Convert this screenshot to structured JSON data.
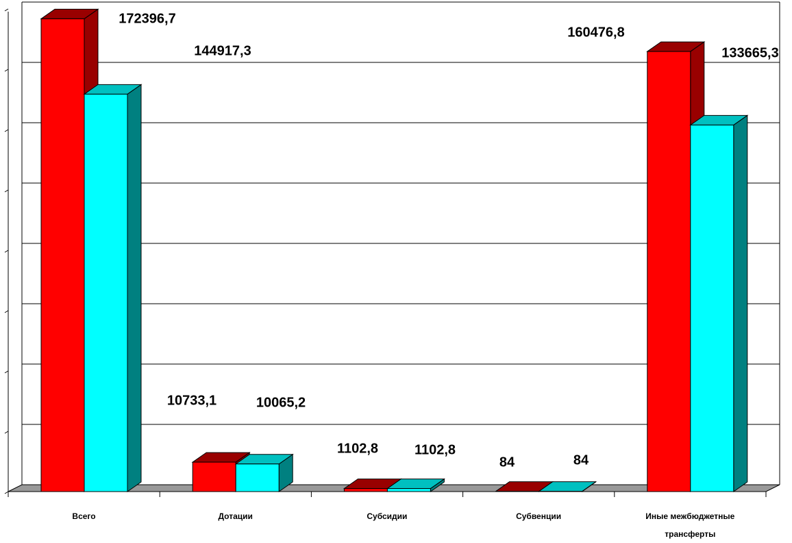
{
  "chart_data": {
    "type": "bar3d",
    "categories": [
      "Всего",
      "Дотации",
      "Субсидии",
      "Субвенции",
      "Иные межбюджетные трансферты"
    ],
    "series": [
      {
        "color": "#ff0000",
        "values": [
          172396.7,
          10733.1,
          1102.8,
          84,
          160476.8
        ],
        "value_labels": [
          "172396,7",
          "10733,1",
          "1102,8",
          "84",
          "160476,8"
        ]
      },
      {
        "color": "#00ffff",
        "values": [
          144917.3,
          10065.2,
          1102.8,
          84,
          133665.3
        ],
        "value_labels": [
          "144917,3",
          "10065,2",
          "1102,8",
          "84",
          "133665,3"
        ]
      }
    ],
    "ylim": [
      0,
      176000
    ],
    "yticks": [
      0,
      22000,
      44000,
      66000,
      88000,
      110000,
      132000,
      154000,
      176000
    ],
    "grid": true
  }
}
